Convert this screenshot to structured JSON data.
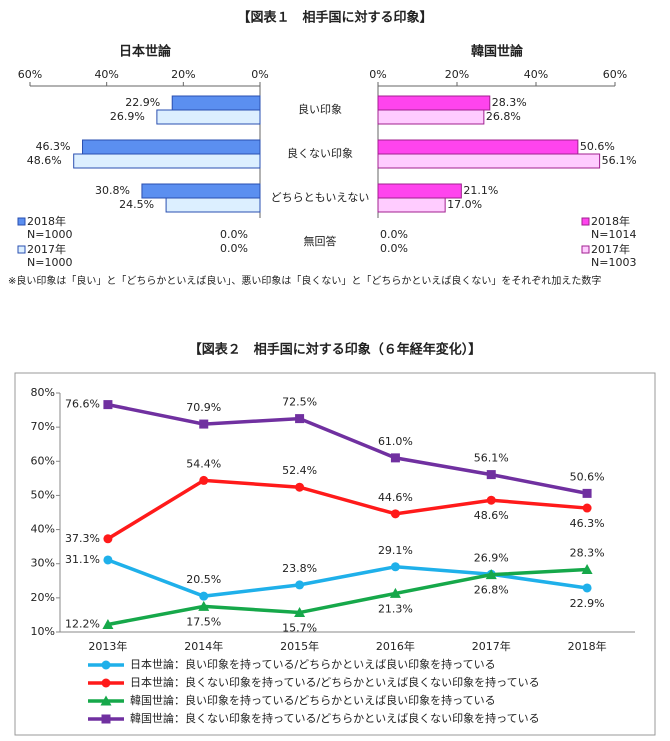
{
  "chart_data": [
    {
      "type": "bar",
      "orientation": "horizontal",
      "reversed": true,
      "title": "【図表１　相手国に対する印象】",
      "subtitle": "日本世論",
      "categories": [
        "良い印象",
        "良くない印象",
        "どちらともいえない",
        "無回答"
      ],
      "series": [
        {
          "name": "2018年",
          "sample": "N=1000",
          "color": "#5b8ff0",
          "edgecolor": "#2a4fb0",
          "values": [
            22.9,
            46.3,
            30.8,
            0.0
          ],
          "value_labels": [
            "22.9%",
            "46.3%",
            "30.8%",
            "0.0%"
          ]
        },
        {
          "name": "2017年",
          "sample": "N=1000",
          "color": "#dcefff",
          "edgecolor": "#2a4fb0",
          "values": [
            26.9,
            48.6,
            24.5,
            0.0
          ],
          "value_labels": [
            "26.9%",
            "48.6%",
            "24.5%",
            "0.0%"
          ]
        }
      ],
      "xlim": [
        0,
        60
      ],
      "xticks": [
        {
          "value": 60,
          "label": "60%"
        },
        {
          "value": 40,
          "label": "40%"
        },
        {
          "value": 20,
          "label": "20%"
        },
        {
          "value": 0,
          "label": "0%"
        }
      ],
      "note": "※良い印象は「良い」と「どちらかといえば良い」、悪い印象は「良くない」と「どちらかといえば良くない」をそれぞれ加えた数字"
    },
    {
      "type": "bar",
      "orientation": "horizontal",
      "subtitle": "韓国世論",
      "series": [
        {
          "name": "2018年",
          "sample": "N=1014",
          "color": "#ff44ee",
          "edgecolor": "#a0208f",
          "values": [
            28.3,
            50.6,
            21.1,
            0.0
          ],
          "value_labels": [
            "28.3%",
            "50.6%",
            "21.1%",
            "0.0%"
          ]
        },
        {
          "name": "2017年",
          "sample": "N=1003",
          "color": "#ffccff",
          "edgecolor": "#a0208f",
          "values": [
            26.8,
            56.1,
            17.0,
            0.0
          ],
          "value_labels": [
            "26.8%",
            "56.1%",
            "17.0%",
            "0.0%"
          ]
        }
      ],
      "xlim": [
        0,
        60
      ],
      "xticks": [
        {
          "value": 0,
          "label": "0%"
        },
        {
          "value": 20,
          "label": "20%"
        },
        {
          "value": 40,
          "label": "40%"
        },
        {
          "value": 60,
          "label": "60%"
        }
      ]
    },
    {
      "type": "line",
      "title": "【図表２　相手国に対する印象（６年経年変化）】",
      "categories": [
        "2013年",
        "2014年",
        "2015年",
        "2016年",
        "2017年",
        "2018年"
      ],
      "ylim": [
        10,
        80
      ],
      "yticks": [
        {
          "value": 10,
          "label": "10%"
        },
        {
          "value": 20,
          "label": "20%"
        },
        {
          "value": 30,
          "label": "30%"
        },
        {
          "value": 40,
          "label": "40%"
        },
        {
          "value": 50,
          "label": "50%"
        },
        {
          "value": 60,
          "label": "60%"
        },
        {
          "value": 70,
          "label": "70%"
        },
        {
          "value": 80,
          "label": "80%"
        }
      ],
      "series": [
        {
          "name": "日本世論：良い印象を持っている/どちらかといえば良い印象を持っている",
          "color": "#1fb0ea",
          "marker": "circle",
          "values": [
            31.1,
            20.5,
            23.8,
            29.1,
            26.9,
            22.9
          ],
          "value_labels": [
            "31.1%",
            "20.5%",
            "23.8%",
            "29.1%",
            "26.9%",
            "22.9%"
          ]
        },
        {
          "name": "日本世論：良くない印象を持っている/どちらかといえば良くない印象を持っている",
          "color": "#ff1a1a",
          "marker": "circle",
          "values": [
            37.3,
            54.4,
            52.4,
            44.6,
            48.6,
            46.3
          ],
          "value_labels": [
            "37.3%",
            "54.4%",
            "52.4%",
            "44.6%",
            "48.6%",
            "46.3%"
          ]
        },
        {
          "name": "韓国世論：良い印象を持っている/どちらかといえば良い印象を持っている",
          "color": "#16a84a",
          "marker": "triangle",
          "values": [
            12.2,
            17.5,
            15.7,
            21.3,
            26.8,
            28.3
          ],
          "value_labels": [
            "12.2%",
            "17.5%",
            "15.7%",
            "21.3%",
            "26.8%",
            "28.3%"
          ]
        },
        {
          "name": "韓国世論：良くない印象を持っている/どちらかといえば良くない印象を持っている",
          "color": "#7030a0",
          "marker": "square",
          "values": [
            76.6,
            70.9,
            72.5,
            61.0,
            56.1,
            50.6
          ],
          "value_labels": [
            "76.6%",
            "70.9%",
            "72.5%",
            "61.0%",
            "56.1%",
            "50.6%"
          ]
        }
      ]
    }
  ]
}
